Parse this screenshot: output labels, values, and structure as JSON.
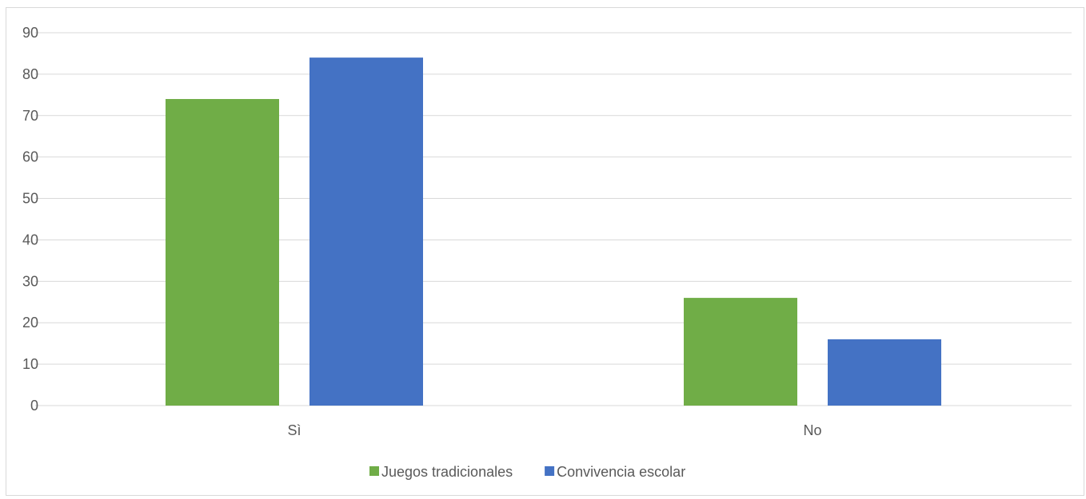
{
  "chart_data": {
    "type": "bar",
    "categories": [
      "Sì",
      "No"
    ],
    "series": [
      {
        "name": "Juegos tradicionales",
        "values": [
          74,
          26
        ],
        "color": "#70ad47"
      },
      {
        "name": "Convivencia escolar",
        "values": [
          84,
          16
        ],
        "color": "#4472c4"
      }
    ],
    "ylim": [
      0,
      90
    ],
    "yticks": [
      0,
      10,
      20,
      30,
      40,
      50,
      60,
      70,
      80,
      90
    ],
    "grid": true,
    "legend_position": "bottom",
    "gridline_color": "#d9d9d9"
  }
}
